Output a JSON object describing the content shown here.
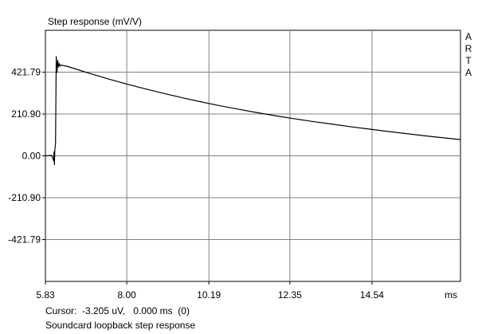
{
  "chart_data": {
    "type": "line",
    "title": "Step response (mV/V)",
    "watermark_letters": [
      "A",
      "R",
      "T",
      "A"
    ],
    "xlabel": "ms",
    "x_ticks": [
      "5.83",
      "8.00",
      "10.19",
      "12.35",
      "14.54"
    ],
    "x_tick_values": [
      5.83,
      8.0,
      10.19,
      12.35,
      14.54
    ],
    "y_ticks": [
      "421.79",
      "210.90",
      "0.00",
      "-210.90",
      "-421.79"
    ],
    "y_tick_values": [
      421.79,
      210.9,
      0.0,
      -210.9,
      -421.79
    ],
    "xlim": [
      5.83,
      16.9
    ],
    "ylim": [
      -632.7,
      632.7
    ],
    "grid": true,
    "series": [
      {
        "color": "#000000",
        "x": [
          5.83,
          6.0,
          6.05,
          6.06,
          6.07,
          6.08,
          6.1,
          6.12,
          6.14,
          6.16,
          6.18,
          6.2,
          6.22,
          6.25,
          6.3,
          6.4,
          6.6,
          6.8,
          7.0,
          7.5,
          8.0,
          8.5,
          9.0,
          9.5,
          10.0,
          10.5,
          11.0,
          11.5,
          12.0,
          12.5,
          13.0,
          13.5,
          14.0,
          14.5,
          15.0,
          15.5,
          16.0,
          16.5,
          16.9
        ],
        "y": [
          0,
          2,
          -25,
          20,
          -45,
          30,
          60,
          500,
          420,
          480,
          448,
          465,
          452,
          458,
          455,
          452,
          440,
          428,
          416,
          388,
          362,
          337,
          314,
          292,
          271,
          252,
          234,
          217,
          201,
          186,
          172,
          159,
          146,
          134,
          122,
          111,
          100,
          90,
          82
        ]
      }
    ]
  },
  "footer": {
    "cursor_label": "Cursor:",
    "cursor_readout": "-3.205 uV,   0.000 ms  (0)",
    "description": "Soundcard loopback step response"
  }
}
